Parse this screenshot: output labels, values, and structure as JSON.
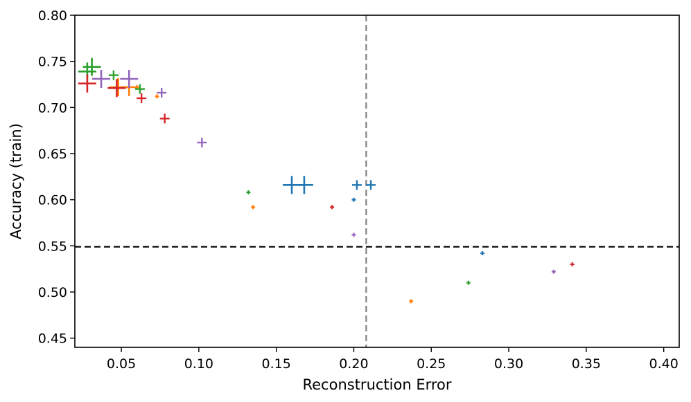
{
  "chart_data": {
    "type": "scatter",
    "title": "",
    "xlabel": "Reconstruction Error",
    "ylabel": "Accuracy (train)",
    "xlim": [
      0.02,
      0.41
    ],
    "ylim": [
      0.44,
      0.8
    ],
    "xticks": [
      0.05,
      0.1,
      0.15,
      0.2,
      0.25,
      0.3,
      0.35,
      0.4
    ],
    "xtick_labels": [
      "0.05",
      "0.10",
      "0.15",
      "0.20",
      "0.25",
      "0.30",
      "0.35",
      "0.40"
    ],
    "yticks": [
      0.45,
      0.5,
      0.55,
      0.6,
      0.65,
      0.7,
      0.75,
      0.8
    ],
    "ytick_labels": [
      "0.45",
      "0.50",
      "0.55",
      "0.60",
      "0.65",
      "0.70",
      "0.75",
      "0.80"
    ],
    "grid": false,
    "marker": "plus",
    "reference_lines": [
      {
        "orientation": "horizontal",
        "value": 0.549,
        "color": "#000000",
        "style": "dashed"
      },
      {
        "orientation": "vertical",
        "value": 0.208,
        "color": "#808080",
        "style": "dashed"
      }
    ],
    "series": [
      {
        "name": "blue",
        "color": "#1f77b4",
        "points": [
          {
            "x": 0.16,
            "y": 0.616,
            "size": 3
          },
          {
            "x": 0.168,
            "y": 0.616,
            "size": 3
          },
          {
            "x": 0.202,
            "y": 0.616,
            "size": 2
          },
          {
            "x": 0.211,
            "y": 0.616,
            "size": 2
          },
          {
            "x": 0.2,
            "y": 0.6,
            "size": 1
          },
          {
            "x": 0.283,
            "y": 0.542,
            "size": 1
          }
        ]
      },
      {
        "name": "orange",
        "color": "#ff7f0e",
        "points": [
          {
            "x": 0.048,
            "y": 0.722,
            "size": 3
          },
          {
            "x": 0.055,
            "y": 0.722,
            "size": 3
          },
          {
            "x": 0.06,
            "y": 0.722,
            "size": 1
          },
          {
            "x": 0.073,
            "y": 0.712,
            "size": 1
          },
          {
            "x": 0.135,
            "y": 0.592,
            "size": 1
          },
          {
            "x": 0.237,
            "y": 0.49,
            "size": 1
          }
        ]
      },
      {
        "name": "green",
        "color": "#2ca02c",
        "points": [
          {
            "x": 0.028,
            "y": 0.739,
            "size": 3
          },
          {
            "x": 0.031,
            "y": 0.744,
            "size": 3
          },
          {
            "x": 0.045,
            "y": 0.735,
            "size": 2
          },
          {
            "x": 0.062,
            "y": 0.72,
            "size": 2
          },
          {
            "x": 0.132,
            "y": 0.608,
            "size": 1
          },
          {
            "x": 0.274,
            "y": 0.51,
            "size": 1
          }
        ]
      },
      {
        "name": "red",
        "color": "#d62728",
        "points": [
          {
            "x": 0.028,
            "y": 0.726,
            "size": 3
          },
          {
            "x": 0.047,
            "y": 0.721,
            "size": 3
          },
          {
            "x": 0.063,
            "y": 0.71,
            "size": 2
          },
          {
            "x": 0.078,
            "y": 0.688,
            "size": 2
          },
          {
            "x": 0.186,
            "y": 0.592,
            "size": 1
          },
          {
            "x": 0.341,
            "y": 0.53,
            "size": 1
          }
        ]
      },
      {
        "name": "purple",
        "color": "#9467bd",
        "points": [
          {
            "x": 0.037,
            "y": 0.731,
            "size": 3
          },
          {
            "x": 0.055,
            "y": 0.731,
            "size": 3
          },
          {
            "x": 0.076,
            "y": 0.716,
            "size": 2
          },
          {
            "x": 0.102,
            "y": 0.662,
            "size": 2
          },
          {
            "x": 0.2,
            "y": 0.562,
            "size": 1
          },
          {
            "x": 0.329,
            "y": 0.522,
            "size": 1
          }
        ]
      }
    ]
  }
}
